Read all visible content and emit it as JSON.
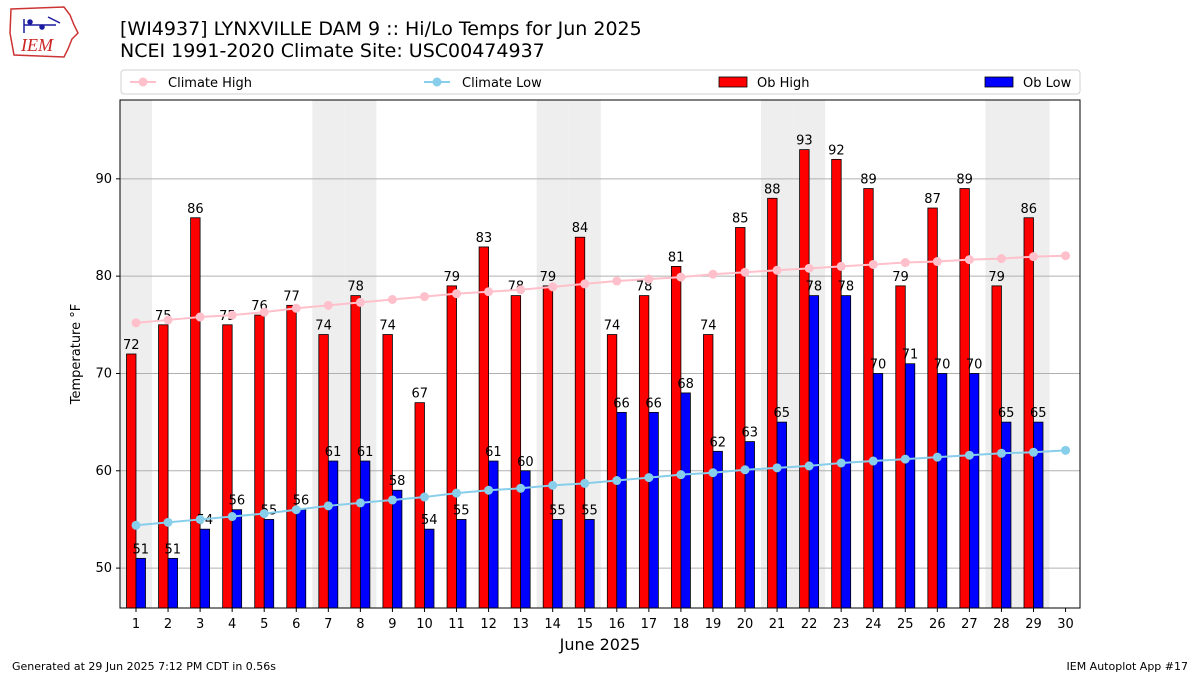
{
  "header": {
    "title_line1": "[WI4937] LYNXVILLE DAM 9 :: Hi/Lo Temps for Jun 2025",
    "title_line2": "NCEI 1991-2020 Climate Site: USC00474937"
  },
  "logo": {
    "text": "IEM",
    "icon": "iowa-state-weather-logo"
  },
  "footer": {
    "left": "Generated at 29 Jun 2025 7:12 PM CDT in 0.56s",
    "right": "IEM Autoplot App #17"
  },
  "colors": {
    "ob_high": "#ff0000",
    "ob_low": "#0000ff",
    "climate_high": "#ffc0cb",
    "climate_low": "#87ceeb",
    "weekend_band": "#eeeeee",
    "grid": "#b0b0b0"
  },
  "chart_data": {
    "type": "bar",
    "xlabel": "June 2025",
    "ylabel": "Temperature °F",
    "ylim": [
      45.9,
      98.1
    ],
    "yticks": [
      50,
      60,
      70,
      80,
      90
    ],
    "grid": "horizontal",
    "legend_placement": "top",
    "categories": [
      "1",
      "2",
      "3",
      "4",
      "5",
      "6",
      "7",
      "8",
      "9",
      "10",
      "11",
      "12",
      "13",
      "14",
      "15",
      "16",
      "17",
      "18",
      "19",
      "20",
      "21",
      "22",
      "23",
      "24",
      "25",
      "26",
      "27",
      "28",
      "29",
      "30"
    ],
    "weekend_days": [
      1,
      7,
      8,
      14,
      15,
      21,
      22,
      28,
      29
    ],
    "series": [
      {
        "name": "Ob High",
        "kind": "bar",
        "color": "#ff0000",
        "values": [
          72,
          75,
          86,
          75,
          76,
          77,
          74,
          78,
          74,
          67,
          79,
          83,
          78,
          79,
          84,
          74,
          78,
          81,
          74,
          85,
          88,
          93,
          92,
          89,
          79,
          87,
          89,
          79,
          86,
          null
        ]
      },
      {
        "name": "Ob Low",
        "kind": "bar",
        "color": "#0000ff",
        "values": [
          51,
          51,
          54,
          56,
          55,
          56,
          61,
          61,
          58,
          54,
          55,
          61,
          60,
          55,
          55,
          66,
          66,
          68,
          62,
          63,
          65,
          78,
          78,
          70,
          71,
          70,
          70,
          65,
          65,
          null
        ]
      },
      {
        "name": "Climate High",
        "kind": "line",
        "color": "#ffc0cb",
        "values": [
          75.2,
          75.5,
          75.8,
          76.0,
          76.3,
          76.7,
          77.0,
          77.3,
          77.6,
          77.9,
          78.2,
          78.4,
          78.6,
          78.9,
          79.2,
          79.5,
          79.7,
          79.9,
          80.2,
          80.4,
          80.6,
          80.8,
          81.0,
          81.2,
          81.4,
          81.5,
          81.7,
          81.8,
          82.0,
          82.1
        ]
      },
      {
        "name": "Climate Low",
        "kind": "line",
        "color": "#87ceeb",
        "values": [
          54.4,
          54.7,
          55.0,
          55.3,
          55.6,
          56.0,
          56.4,
          56.7,
          57.0,
          57.3,
          57.7,
          58.0,
          58.2,
          58.5,
          58.7,
          59.0,
          59.3,
          59.6,
          59.8,
          60.1,
          60.3,
          60.5,
          60.8,
          61.0,
          61.2,
          61.4,
          61.6,
          61.8,
          61.9,
          62.1
        ]
      }
    ]
  }
}
